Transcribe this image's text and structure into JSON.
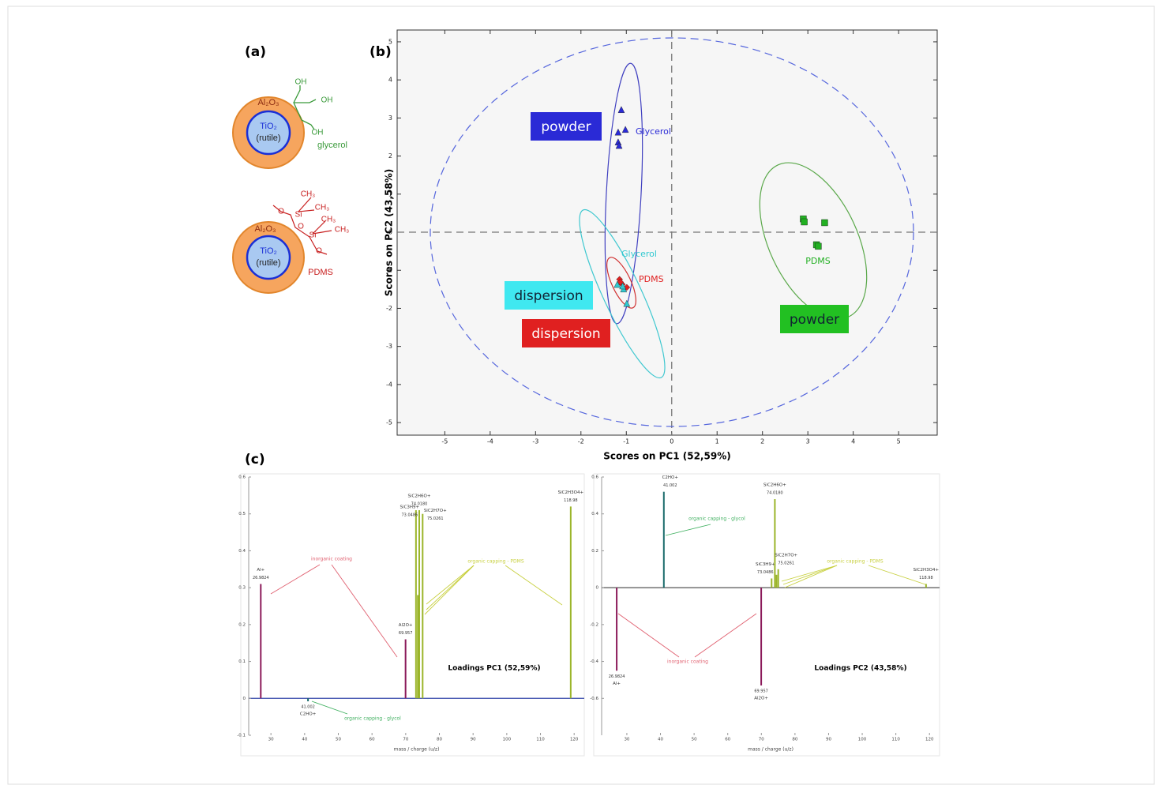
{
  "figure": {
    "panel_labels": [
      "(a)",
      "(b)",
      "(c)"
    ]
  },
  "diagram": {
    "particles": [
      {
        "shell": "Al₂O₃",
        "core": "TiO₂",
        "phase": "(rutile)",
        "ligand": "glycerol"
      },
      {
        "shell": "Al₂O₃",
        "core": "TiO₂",
        "phase": "(rutile)",
        "ligand": "PDMS"
      }
    ],
    "glycerol_groups": [
      "OH",
      "OH",
      "OH"
    ],
    "pdms_atoms": [
      "CH₃",
      "CH₃",
      "CH₃",
      "CH₃",
      "Si",
      "Si",
      "O",
      "O",
      "O"
    ]
  },
  "chart_data": [
    {
      "type": "scatter",
      "x_label": "Scores on PC1 (52,59%)",
      "y_label": "Scores on PC2 (43,58%)",
      "xlim": [
        -6.05,
        5.85
      ],
      "xticks": [
        -5,
        -4,
        -3,
        -2,
        -1,
        0,
        1,
        2,
        3,
        4,
        5
      ],
      "ylim": [
        -5.33,
        5.31
      ],
      "yticks": [
        -5,
        -4,
        -3,
        -2,
        -1,
        0,
        1,
        2,
        3,
        4,
        5
      ],
      "annotations": [
        "powder",
        "dispersion",
        "dispersion",
        "powder"
      ],
      "series": [
        {
          "name": "Glycerol",
          "color": "#2a2ad6",
          "marker": "triangle",
          "x": [
            -1.11,
            -1.18,
            -1.02,
            -1.18,
            -1.16
          ],
          "values": [
            3.22,
            2.63,
            2.7,
            2.37,
            2.28
          ]
        },
        {
          "name": "PDMS",
          "color": "#22b022",
          "marker": "square",
          "x": [
            2.9,
            2.92,
            3.37,
            3.19,
            3.23
          ],
          "values": [
            0.35,
            0.27,
            0.25,
            -0.33,
            -0.37
          ]
        },
        {
          "name": "PDMS",
          "color": "#e02020",
          "marker": "diamond",
          "x": [
            -1.15,
            -1.09,
            -0.99,
            -1.13
          ],
          "values": [
            -1.24,
            -1.37,
            -1.45,
            -1.31
          ]
        },
        {
          "name": "Glycerol",
          "color": "#30c8d0",
          "marker": "triangle",
          "x": [
            -1.2,
            -1.06,
            -0.99,
            -1.08
          ],
          "values": [
            -1.37,
            -1.49,
            -1.87,
            -1.41
          ]
        }
      ]
    },
    {
      "type": "stem",
      "title": "Loadings PC1 (52,59%)",
      "x_label": "mass / charge (u/z)",
      "xlim": [
        23.4,
        123
      ],
      "xticks": [
        30,
        40,
        50,
        60,
        70,
        80,
        90,
        100,
        110,
        120
      ],
      "ylim": [
        -0.1,
        0.6
      ],
      "yticks": [
        -0.1,
        0,
        0.1,
        0.2,
        0.3,
        0.4,
        0.5,
        0.6
      ],
      "annotations": [
        "inorganic coating",
        "organic capping - PDMS",
        "organic capping - glycol"
      ],
      "x": [
        26.9824,
        41.002,
        69.957,
        73.0486,
        73.6,
        74.018,
        75.0261,
        118.98
      ],
      "values": [
        0.31,
        -0.008,
        0.16,
        0.51,
        0.28,
        0.51,
        0.5,
        0.52
      ],
      "colors": [
        "#8b1a5a",
        "#1a6b6b",
        "#8b1a5a",
        "#9bb52a",
        "#9bb52a",
        "#9bb52a",
        "#9bb52a",
        "#9bb52a"
      ],
      "ion_labels": [
        "Al+",
        "C2HO+",
        "Al2O+",
        "SiC3H9+",
        null,
        "SiC2H6O+",
        "SiC2H7O+",
        "SiC2H3O4+"
      ],
      "mass_labels": [
        "26.9824",
        "41.002",
        "69.957",
        "73.0486",
        null,
        "74.0180",
        "75.0261",
        "118.98"
      ]
    },
    {
      "type": "stem",
      "title": "Loadings PC2 (43,58%)",
      "x_label": "mass / charge (u/z)",
      "xlim": [
        22.5,
        123
      ],
      "xticks": [
        30,
        40,
        50,
        60,
        70,
        80,
        90,
        100,
        110,
        120
      ],
      "ylim": [
        -0.8,
        0.6
      ],
      "yticks": [
        -0.6,
        -0.4,
        -0.2,
        0,
        0.2,
        0.4,
        0.6
      ],
      "annotations": [
        "inorganic coating",
        "organic capping - PDMS",
        "organic capping - glycol"
      ],
      "x": [
        26.9824,
        41.002,
        69.957,
        73.0486,
        74.018,
        74.5,
        75.0261,
        118.98
      ],
      "values": [
        -0.45,
        0.52,
        -0.53,
        0.05,
        0.48,
        0.07,
        0.1,
        0.02
      ],
      "colors": [
        "#8b1a5a",
        "#1a6b6b",
        "#8b1a5a",
        "#9bb52a",
        "#9bb52a",
        "#9bb52a",
        "#9bb52a",
        "#9bb52a"
      ],
      "ion_labels": [
        "Al+",
        "C2HO+",
        "Al2O+",
        "SiC3H9+",
        "SiC2H6O+",
        null,
        "SiC2H7O+",
        "SiC2H3O4+"
      ],
      "mass_labels": [
        "26.9824",
        "41.002",
        "69.957",
        "73.0486",
        "74.0180",
        null,
        "75.0261",
        "118.98"
      ]
    }
  ]
}
